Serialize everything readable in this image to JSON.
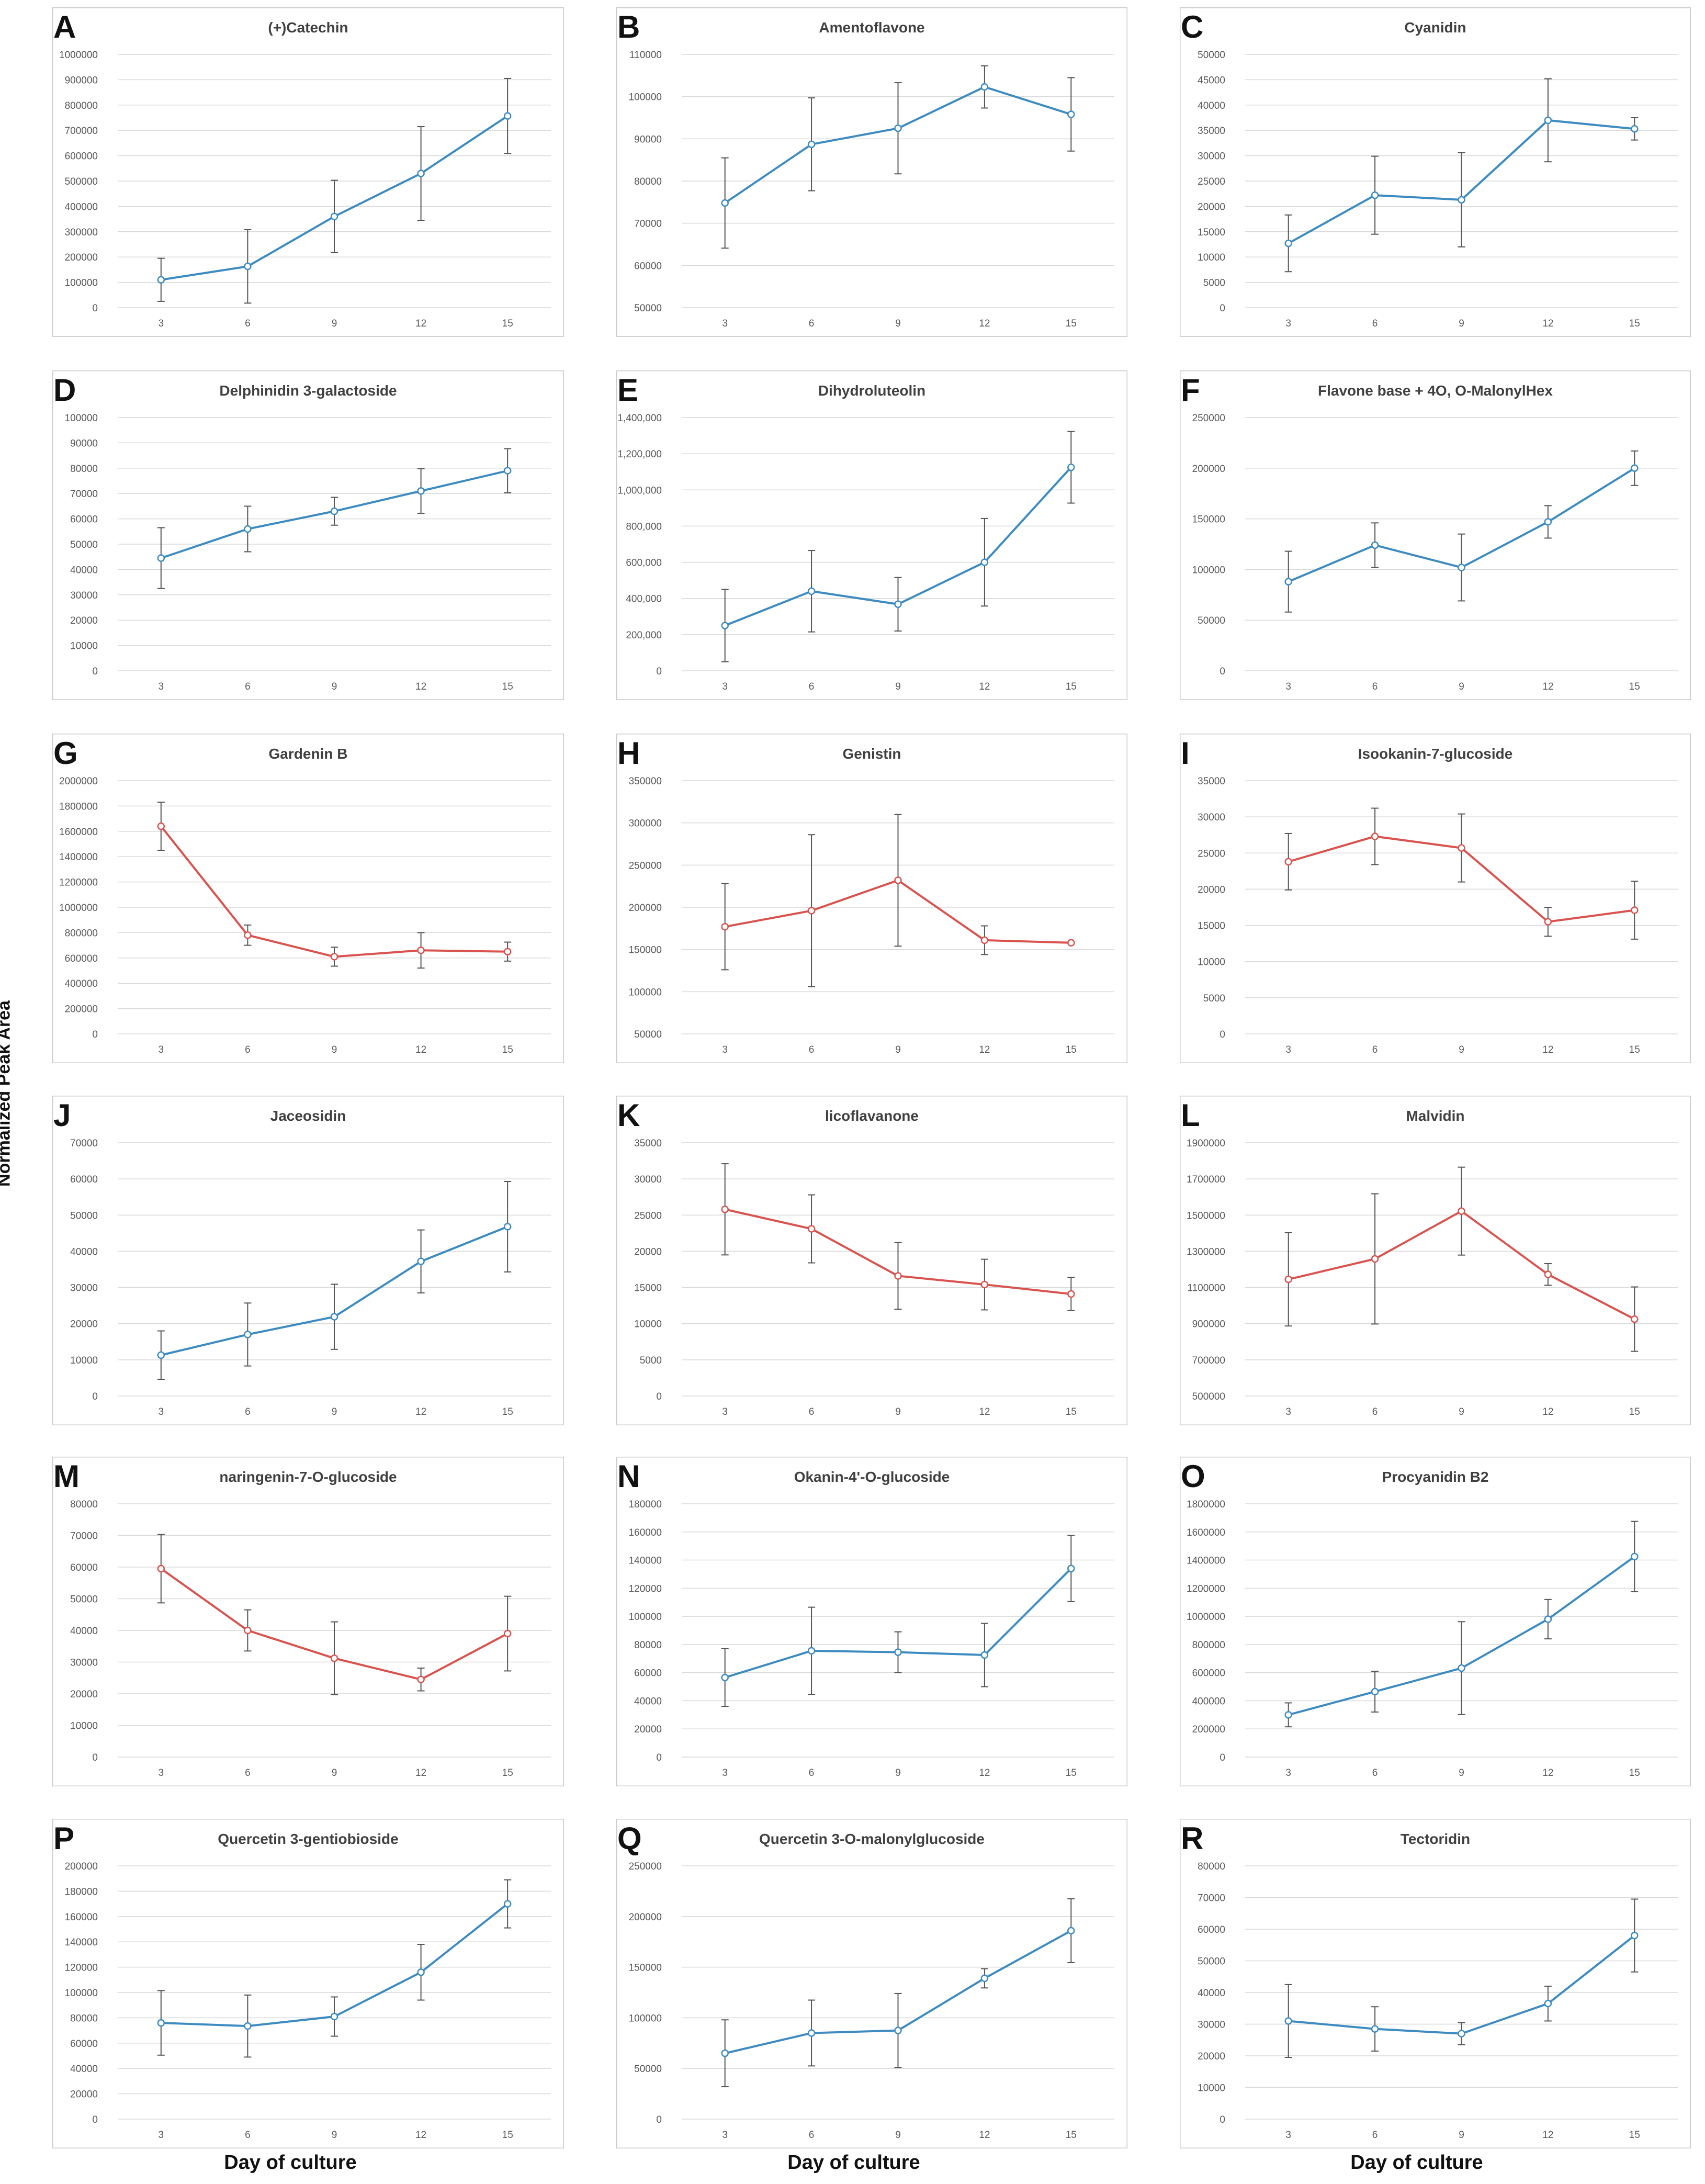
{
  "figure": {
    "y_axis_label": "Normalized Peak Area",
    "x_axis_label": "Day of culture"
  },
  "colors": {
    "increase": "#3d8bc0",
    "decrease": "#d9534f",
    "error_bar": "#555555",
    "grid": "#d9d9d9",
    "panel_border": "#c8c8c8",
    "tick_text": "#595959"
  },
  "chart_data": [
    {
      "panel": "A",
      "title": "(+)Catechin",
      "type": "line",
      "color_key": "increase",
      "x": [
        "3",
        "6",
        "9",
        "12",
        "15"
      ],
      "values": [
        110000,
        163000,
        360000,
        530000,
        757000
      ],
      "errors": [
        85000,
        145000,
        143000,
        185000,
        148000
      ],
      "ylim": [
        0,
        1000000
      ],
      "ytick_step": 100000,
      "ytick_labels": [
        "0",
        "100000",
        "200000",
        "300000",
        "400000",
        "500000",
        "600000",
        "700000",
        "800000",
        "900000",
        "1000000"
      ]
    },
    {
      "panel": "B",
      "title": "Amentoflavone",
      "type": "line",
      "color_key": "increase",
      "x": [
        "3",
        "6",
        "9",
        "12",
        "15"
      ],
      "values": [
        74800,
        88700,
        92500,
        102300,
        95800
      ],
      "errors": [
        10700,
        11000,
        10800,
        5000,
        8700
      ],
      "ylim": [
        50000,
        110000
      ],
      "ytick_step": 10000,
      "ytick_labels": [
        "50000",
        "60000",
        "70000",
        "80000",
        "90000",
        "100000",
        "110000"
      ]
    },
    {
      "panel": "C",
      "title": "Cyanidin",
      "type": "line",
      "color_key": "increase",
      "x": [
        "3",
        "6",
        "9",
        "12",
        "15"
      ],
      "values": [
        12700,
        22200,
        21300,
        37000,
        35300
      ],
      "errors": [
        5600,
        7700,
        9300,
        8200,
        2200
      ],
      "ylim": [
        0,
        50000
      ],
      "ytick_step": 5000,
      "ytick_labels": [
        "0",
        "5000",
        "10000",
        "15000",
        "20000",
        "25000",
        "30000",
        "35000",
        "40000",
        "45000",
        "50000"
      ]
    },
    {
      "panel": "D",
      "title": "Delphinidin 3-galactoside",
      "type": "line",
      "color_key": "increase",
      "x": [
        "3",
        "6",
        "9",
        "12",
        "15"
      ],
      "values": [
        44500,
        56000,
        63000,
        71000,
        79000
      ],
      "errors": [
        12000,
        9000,
        5500,
        8800,
        8700
      ],
      "ylim": [
        0,
        100000
      ],
      "ytick_step": 10000,
      "ytick_labels": [
        "0",
        "10000",
        "20000",
        "30000",
        "40000",
        "50000",
        "60000",
        "70000",
        "80000",
        "90000",
        "100000"
      ]
    },
    {
      "panel": "E",
      "title": "Dihydroluteolin",
      "type": "line",
      "color_key": "increase",
      "x": [
        "3",
        "6",
        "9",
        "12",
        "15"
      ],
      "values": [
        250000,
        440000,
        368000,
        600000,
        1125000
      ],
      "errors": [
        200000,
        225000,
        148000,
        242000,
        198000
      ],
      "ylim": [
        0,
        1400000
      ],
      "ytick_step": 200000,
      "ytick_labels": [
        "0",
        "200,000",
        "400,000",
        "600,000",
        "800,000",
        "1,000,000",
        "1,200,000",
        "1,400,000"
      ]
    },
    {
      "panel": "F",
      "title": "Flavone base + 4O, O-MalonylHex",
      "type": "line",
      "color_key": "increase",
      "x": [
        "3",
        "6",
        "9",
        "12",
        "15"
      ],
      "values": [
        88000,
        124000,
        102000,
        147000,
        200000
      ],
      "errors": [
        30000,
        22000,
        33000,
        16000,
        17000
      ],
      "ylim": [
        0,
        250000
      ],
      "ytick_step": 50000,
      "ytick_labels": [
        "0",
        "50000",
        "100000",
        "150000",
        "200000",
        "250000"
      ]
    },
    {
      "panel": "G",
      "title": "Gardenin B",
      "type": "line",
      "color_key": "decrease",
      "x": [
        "3",
        "6",
        "9",
        "12",
        "15"
      ],
      "values": [
        1640000,
        780000,
        610000,
        660000,
        650000
      ],
      "errors": [
        190000,
        80000,
        75000,
        140000,
        75000
      ],
      "ylim": [
        0,
        2000000
      ],
      "ytick_step": 200000,
      "ytick_labels": [
        "0",
        "200000",
        "400000",
        "600000",
        "800000",
        "1000000",
        "1200000",
        "1400000",
        "1600000",
        "1800000",
        "2000000"
      ]
    },
    {
      "panel": "H",
      "title": "Genistin",
      "type": "line",
      "color_key": "decrease",
      "x": [
        "3",
        "6",
        "9",
        "12",
        "15"
      ],
      "values": [
        177000,
        196000,
        232000,
        161000,
        158000
      ],
      "errors": [
        51000,
        90000,
        78000,
        17000,
        0
      ],
      "ylim": [
        50000,
        350000
      ],
      "ytick_step": 50000,
      "ytick_labels": [
        "50000",
        "100000",
        "150000",
        "200000",
        "250000",
        "300000",
        "350000"
      ]
    },
    {
      "panel": "I",
      "title": "Isookanin-7-glucoside",
      "type": "line",
      "color_key": "decrease",
      "x": [
        "3",
        "6",
        "9",
        "12",
        "15"
      ],
      "values": [
        23800,
        27300,
        25700,
        15500,
        17100
      ],
      "errors": [
        3900,
        3900,
        4700,
        2000,
        4000
      ],
      "ylim": [
        0,
        35000
      ],
      "ytick_step": 5000,
      "ytick_labels": [
        "0",
        "5000",
        "10000",
        "15000",
        "20000",
        "25000",
        "30000",
        "35000"
      ]
    },
    {
      "panel": "J",
      "title": "Jaceosidin",
      "type": "line",
      "color_key": "increase",
      "x": [
        "3",
        "6",
        "9",
        "12",
        "15"
      ],
      "values": [
        11300,
        17000,
        21900,
        37200,
        46800
      ],
      "errors": [
        6700,
        8700,
        9000,
        8700,
        12500
      ],
      "ylim": [
        0,
        70000
      ],
      "ytick_step": 10000,
      "ytick_labels": [
        "0",
        "10000",
        "20000",
        "30000",
        "40000",
        "50000",
        "60000",
        "70000"
      ]
    },
    {
      "panel": "K",
      "title": "licoflavanone",
      "type": "line",
      "color_key": "decrease",
      "x": [
        "3",
        "6",
        "9",
        "12",
        "15"
      ],
      "values": [
        25800,
        23100,
        16600,
        15400,
        14100
      ],
      "errors": [
        6300,
        4700,
        4600,
        3500,
        2300
      ],
      "ylim": [
        0,
        35000
      ],
      "ytick_step": 5000,
      "ytick_labels": [
        "0",
        "5000",
        "10000",
        "15000",
        "20000",
        "25000",
        "30000",
        "35000"
      ]
    },
    {
      "panel": "L",
      "title": "Malvidin",
      "type": "line",
      "color_key": "decrease",
      "x": [
        "3",
        "6",
        "9",
        "12",
        "15"
      ],
      "values": [
        1145000,
        1258000,
        1522000,
        1172000,
        925000
      ],
      "errors": [
        258000,
        360000,
        243000,
        60000,
        178000
      ],
      "ylim": [
        500000,
        1900000
      ],
      "ytick_step": 200000,
      "ytick_labels": [
        "500000",
        "700000",
        "900000",
        "1100000",
        "1300000",
        "1500000",
        "1700000",
        "1900000"
      ]
    },
    {
      "panel": "M",
      "title": "naringenin-7-O-glucoside",
      "type": "line",
      "color_key": "decrease",
      "x": [
        "3",
        "6",
        "9",
        "12",
        "15"
      ],
      "values": [
        59500,
        40000,
        31200,
        24500,
        39000
      ],
      "errors": [
        10800,
        6500,
        11500,
        3600,
        11800
      ],
      "ylim": [
        0,
        80000
      ],
      "ytick_step": 10000,
      "ytick_labels": [
        "0",
        "10000",
        "20000",
        "30000",
        "40000",
        "50000",
        "60000",
        "70000",
        "80000"
      ]
    },
    {
      "panel": "N",
      "title": "Okanin-4'-O-glucoside",
      "type": "line",
      "color_key": "increase",
      "x": [
        "3",
        "6",
        "9",
        "12",
        "15"
      ],
      "values": [
        56500,
        75500,
        74500,
        72500,
        134000
      ],
      "errors": [
        20500,
        31000,
        14500,
        22500,
        23500
      ],
      "ylim": [
        0,
        180000
      ],
      "ytick_step": 20000,
      "ytick_labels": [
        "0",
        "20000",
        "40000",
        "60000",
        "80000",
        "100000",
        "120000",
        "140000",
        "160000",
        "180000"
      ]
    },
    {
      "panel": "O",
      "title": "Procyanidin B2",
      "type": "line",
      "color_key": "increase",
      "x": [
        "3",
        "6",
        "9",
        "12",
        "15"
      ],
      "values": [
        300000,
        465000,
        632000,
        980000,
        1425000
      ],
      "errors": [
        85000,
        145000,
        330000,
        140000,
        250000
      ],
      "ylim": [
        0,
        1800000
      ],
      "ytick_step": 200000,
      "ytick_labels": [
        "0",
        "200000",
        "400000",
        "600000",
        "800000",
        "1000000",
        "1200000",
        "1400000",
        "1600000",
        "1800000"
      ]
    },
    {
      "panel": "P",
      "title": "Quercetin 3-gentiobioside",
      "type": "line",
      "color_key": "increase",
      "x": [
        "3",
        "6",
        "9",
        "12",
        "15"
      ],
      "values": [
        76000,
        73500,
        81000,
        116000,
        170000
      ],
      "errors": [
        25500,
        24500,
        15500,
        22000,
        19000
      ],
      "ylim": [
        0,
        200000
      ],
      "ytick_step": 20000,
      "ytick_labels": [
        "0",
        "20000",
        "40000",
        "60000",
        "80000",
        "100000",
        "120000",
        "140000",
        "160000",
        "180000",
        "200000"
      ]
    },
    {
      "panel": "Q",
      "title": "Quercetin 3-O-malonylglucoside",
      "type": "line",
      "color_key": "increase",
      "x": [
        "3",
        "6",
        "9",
        "12",
        "15"
      ],
      "values": [
        65000,
        85000,
        87500,
        139000,
        186000
      ],
      "errors": [
        33000,
        32500,
        36500,
        9500,
        31500
      ],
      "ylim": [
        0,
        250000
      ],
      "ytick_step": 50000,
      "ytick_labels": [
        "0",
        "50000",
        "100000",
        "150000",
        "200000",
        "250000"
      ]
    },
    {
      "panel": "R",
      "title": "Tectoridin",
      "type": "line",
      "color_key": "increase",
      "x": [
        "3",
        "6",
        "9",
        "12",
        "15"
      ],
      "values": [
        31000,
        28500,
        27000,
        36500,
        58000
      ],
      "errors": [
        11500,
        7000,
        3500,
        5500,
        11500
      ],
      "ylim": [
        0,
        80000
      ],
      "ytick_step": 10000,
      "ytick_labels": [
        "0",
        "10000",
        "20000",
        "30000",
        "40000",
        "50000",
        "60000",
        "70000",
        "80000"
      ]
    }
  ]
}
